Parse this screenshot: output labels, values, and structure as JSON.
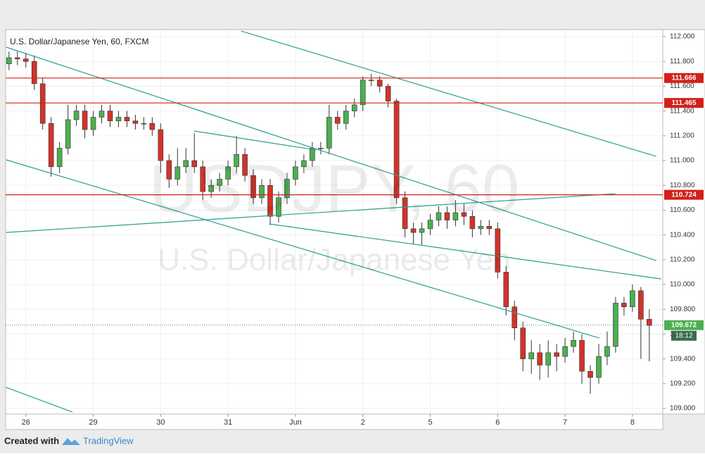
{
  "chart_data": {
    "type": "candlestick",
    "title": "U.S. Dollar/Japanese Yen, 60, FXCM",
    "watermark": "USDJPY, 60",
    "watermark_subtitle": "U.S. Dollar/Japanese Yen",
    "xlim": [
      -0.3,
      9.45
    ],
    "xticks": [
      {
        "value": 0,
        "label": "26"
      },
      {
        "value": 1,
        "label": "29"
      },
      {
        "value": 2,
        "label": "30"
      },
      {
        "value": 3,
        "label": "31"
      },
      {
        "value": 4,
        "label": "Jun"
      },
      {
        "value": 5,
        "label": "2"
      },
      {
        "value": 6,
        "label": "5"
      },
      {
        "value": 7,
        "label": "6"
      },
      {
        "value": 8,
        "label": "7"
      },
      {
        "value": 9,
        "label": "8"
      }
    ],
    "ylim": [
      108.955,
      112.057
    ],
    "yticks": [
      {
        "value": 109,
        "label": "109.000"
      },
      {
        "value": 109.2,
        "label": "109.200"
      },
      {
        "value": 109.4,
        "label": "109.400"
      },
      {
        "value": 109.6,
        "label": "109.600"
      },
      {
        "value": 109.8,
        "label": "109.800"
      },
      {
        "value": 110,
        "label": "110.000"
      },
      {
        "value": 110.2,
        "label": "110.200"
      },
      {
        "value": 110.4,
        "label": "110.400"
      },
      {
        "value": 110.6,
        "label": "110.600"
      },
      {
        "value": 110.8,
        "label": "110.800"
      },
      {
        "value": 111,
        "label": "111.000"
      },
      {
        "value": 111.2,
        "label": "111.200"
      },
      {
        "value": 111.4,
        "label": "111.400"
      },
      {
        "value": 111.6,
        "label": "111.600"
      },
      {
        "value": 111.8,
        "label": "111.800"
      },
      {
        "value": 112,
        "label": "112.000"
      }
    ],
    "up_color": "#4caf50",
    "down_color": "#d2332a",
    "x": [
      -0.25,
      -0.125,
      0,
      0.125,
      0.25,
      0.375,
      0.5,
      0.625,
      0.75,
      0.875,
      1,
      1.125,
      1.25,
      1.375,
      1.5,
      1.625,
      1.75,
      1.875,
      2,
      2.125,
      2.25,
      2.375,
      2.5,
      2.625,
      2.75,
      2.875,
      3,
      3.125,
      3.25,
      3.375,
      3.5,
      3.625,
      3.75,
      3.875,
      4,
      4.125,
      4.25,
      4.375,
      4.5,
      4.625,
      4.75,
      4.875,
      5,
      5.125,
      5.25,
      5.375,
      5.5,
      5.625,
      5.75,
      5.875,
      6,
      6.125,
      6.25,
      6.375,
      6.5,
      6.625,
      6.75,
      6.875,
      7,
      7.125,
      7.25,
      7.375,
      7.5,
      7.625,
      7.75,
      7.875,
      8,
      8.125,
      8.25,
      8.375,
      8.5,
      8.625,
      8.75,
      8.875,
      9,
      9.125,
      9.25
    ],
    "open": [
      111.78,
      111.83,
      111.82,
      111.8,
      111.62,
      111.3,
      110.95,
      111.1,
      111.33,
      111.4,
      111.25,
      111.35,
      111.4,
      111.32,
      111.35,
      111.32,
      111.3,
      111.3,
      111.25,
      111,
      110.85,
      110.95,
      111,
      110.95,
      110.75,
      110.8,
      110.85,
      110.95,
      111.05,
      110.88,
      110.7,
      110.8,
      110.55,
      110.7,
      110.85,
      110.95,
      111,
      111.1,
      111.1,
      111.35,
      111.3,
      111.4,
      111.45,
      111.65,
      111.65,
      111.6,
      111.48,
      110.7,
      110.45,
      110.42,
      110.45,
      110.52,
      110.58,
      110.52,
      110.58,
      110.55,
      110.45,
      110.47,
      110.45,
      110.1,
      109.82,
      109.65,
      109.4,
      109.45,
      109.35,
      109.45,
      109.42,
      109.5,
      109.55,
      109.3,
      109.25,
      109.42,
      109.5,
      109.85,
      109.82,
      109.95,
      109.72
    ],
    "high": [
      111.88,
      111.88,
      111.87,
      111.85,
      111.67,
      111.35,
      111.15,
      111.45,
      111.45,
      111.45,
      111.4,
      111.45,
      111.45,
      111.4,
      111.4,
      111.37,
      111.35,
      111.35,
      111.3,
      111.05,
      111.1,
      111.1,
      111.22,
      111,
      110.85,
      110.9,
      111,
      111.2,
      111.1,
      110.93,
      110.85,
      110.85,
      110.75,
      110.9,
      111,
      111.05,
      111.15,
      111.15,
      111.45,
      111.4,
      111.45,
      111.5,
      111.68,
      111.7,
      111.68,
      111.62,
      111.5,
      110.75,
      110.5,
      110.5,
      110.57,
      110.63,
      110.63,
      110.68,
      110.65,
      110.6,
      110.52,
      110.52,
      110.5,
      110.15,
      109.87,
      109.7,
      109.55,
      109.52,
      109.55,
      109.52,
      109.57,
      109.62,
      109.6,
      109.35,
      109.52,
      109.62,
      109.9,
      109.9,
      110,
      109.98,
      109.8
    ],
    "low": [
      111.73,
      111.77,
      111.75,
      111.57,
      111.25,
      110.87,
      110.9,
      111.05,
      111.28,
      111.18,
      111.2,
      111.3,
      111.27,
      111.27,
      111.27,
      111.25,
      111.25,
      111.2,
      110.9,
      110.78,
      110.8,
      110.9,
      110.9,
      110.68,
      110.7,
      110.75,
      110.8,
      110.9,
      110.83,
      110.65,
      110.65,
      110.48,
      110.5,
      110.65,
      110.8,
      110.9,
      110.95,
      111.05,
      111.05,
      111.25,
      111.25,
      111.35,
      111.4,
      111.6,
      111.55,
      111.43,
      110.65,
      110.38,
      110.33,
      110.32,
      110.4,
      110.47,
      110.45,
      110.47,
      110.48,
      110.38,
      110.4,
      110.4,
      110.05,
      109.75,
      109.55,
      109.3,
      109.28,
      109.23,
      109.25,
      109.3,
      109.37,
      109.45,
      109.2,
      109.12,
      109.2,
      109.35,
      109.45,
      109.75,
      109.78,
      109.4,
      109.38
    ],
    "close": [
      111.83,
      111.82,
      111.8,
      111.62,
      111.3,
      110.95,
      111.1,
      111.33,
      111.4,
      111.25,
      111.35,
      111.4,
      111.32,
      111.35,
      111.32,
      111.3,
      111.3,
      111.25,
      111,
      110.85,
      110.95,
      111,
      110.95,
      110.75,
      110.8,
      110.85,
      110.95,
      111.05,
      110.88,
      110.7,
      110.8,
      110.55,
      110.7,
      110.85,
      110.95,
      111,
      111.1,
      111.1,
      111.35,
      111.3,
      111.4,
      111.45,
      111.65,
      111.65,
      111.6,
      111.48,
      110.7,
      110.45,
      110.42,
      110.45,
      110.52,
      110.58,
      110.52,
      110.58,
      110.55,
      110.45,
      110.47,
      110.45,
      110.1,
      109.82,
      109.65,
      109.4,
      109.45,
      109.35,
      109.45,
      109.42,
      109.5,
      109.55,
      109.3,
      109.25,
      109.42,
      109.5,
      109.85,
      109.82,
      109.95,
      109.72,
      109.67
    ],
    "trendlines": [
      {
        "color": "#2e9e8f",
        "x": [
          3.194,
          9.353
        ],
        "y": [
          112.045,
          111.034
        ]
      },
      {
        "color": "#2e9e8f",
        "x": [
          -0.292,
          9.353
        ],
        "y": [
          111.915,
          110.193
        ]
      },
      {
        "color": "#2e9e8f",
        "x": [
          -0.292,
          8.507
        ],
        "y": [
          111.006,
          109.568
        ]
      },
      {
        "color": "#2e9e8f",
        "x": [
          3.612,
          9.426
        ],
        "y": [
          110.489,
          110.045
        ]
      },
      {
        "color": "#2e9e8f",
        "x": [
          -0.292,
          0.689
        ],
        "y": [
          109.17,
          108.972
        ]
      },
      {
        "color": "#2e9e8f",
        "x": [
          -0.292,
          8.747
        ],
        "y": [
          110.42,
          110.733
        ]
      },
      {
        "color": "#2e9e8f",
        "x": [
          2.495,
          4.311
        ],
        "y": [
          111.239,
          111.085
        ]
      }
    ],
    "levels": [
      111.666,
      111.465,
      110.724
    ],
    "level_color": "#d2201a",
    "last_price": 109.672,
    "countdown": "18:12",
    "footer_text": "Created with",
    "footer_brand": "TradingView"
  }
}
